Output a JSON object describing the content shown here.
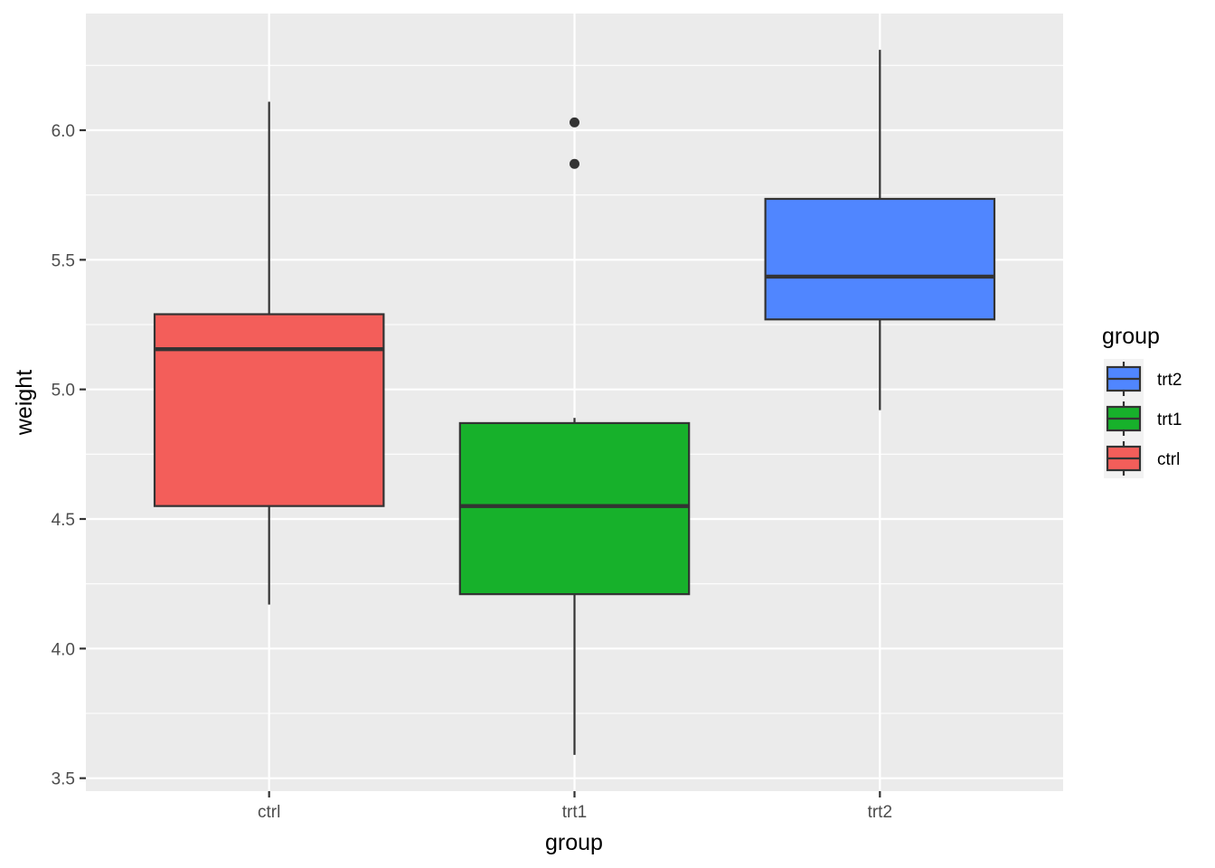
{
  "chart_data": {
    "type": "boxplot",
    "xlabel": "group",
    "ylabel": "weight",
    "categories": [
      "ctrl",
      "trt1",
      "trt2"
    ],
    "ylim": [
      3.45,
      6.45
    ],
    "y_ticks": [
      3.5,
      4.0,
      4.5,
      5.0,
      5.5,
      6.0
    ],
    "y_tick_labels": [
      "3.5",
      "4.0",
      "4.5",
      "5.0",
      "5.5",
      "6.0"
    ],
    "grid": true,
    "legend": {
      "title": "group",
      "position": "right",
      "entries": [
        "trt2",
        "trt1",
        "ctrl"
      ]
    },
    "series": [
      {
        "group": "ctrl",
        "color": "#F35E5A",
        "whisker_low": 4.17,
        "q1": 4.55,
        "median": 5.155,
        "q3": 5.29,
        "whisker_high": 6.11,
        "outliers": []
      },
      {
        "group": "trt1",
        "color": "#17B12B",
        "whisker_low": 3.59,
        "q1": 4.21,
        "median": 4.55,
        "q3": 4.87,
        "whisker_high": 4.89,
        "outliers": [
          5.87,
          6.03
        ]
      },
      {
        "group": "trt2",
        "color": "#5086FF",
        "whisker_low": 4.92,
        "q1": 5.27,
        "median": 5.435,
        "q3": 5.735,
        "whisker_high": 6.31,
        "outliers": []
      }
    ]
  }
}
